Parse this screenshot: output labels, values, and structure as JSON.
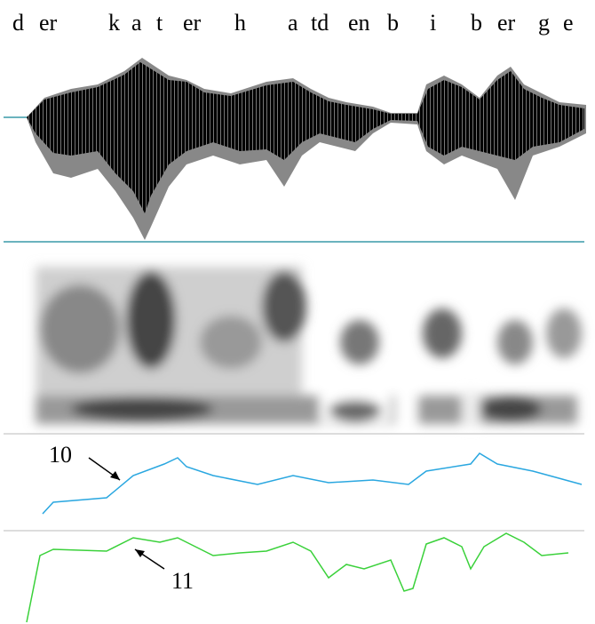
{
  "segments": [
    "d",
    "er",
    "k",
    "a",
    "t",
    "er",
    "h",
    "a",
    "td",
    "en",
    "b",
    "i",
    "b",
    "er",
    "g",
    "e"
  ],
  "annotations": [
    {
      "label": "10"
    },
    {
      "label": "11"
    }
  ]
}
